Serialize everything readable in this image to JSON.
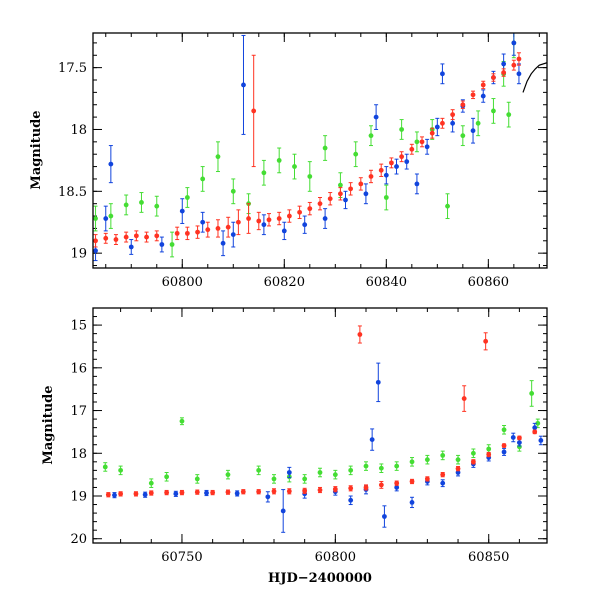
{
  "chart_data": [
    {
      "type": "scatter",
      "panel": "top",
      "title": "",
      "xlabel": "",
      "ylabel": "Magnitude",
      "xlim": [
        60782.5,
        60871.5
      ],
      "ylim": [
        19.12,
        17.22
      ],
      "y_inverted": true,
      "grid": false,
      "x_major_ticks": [
        60800,
        60820,
        60840,
        60860
      ],
      "x_tick_labels": [
        "60800",
        "60820",
        "60840",
        "60860"
      ],
      "x_minor_step": 5,
      "y_major_ticks": [
        17.5,
        18,
        18.5,
        19
      ],
      "y_tick_labels": [
        "17.5",
        "18",
        "18.5",
        "19"
      ],
      "y_minor_step": 0.1,
      "series": [
        {
          "color": "#ff3322",
          "points": [
            [
              60783,
              18.9,
              0.05
            ],
            [
              60785,
              18.88,
              0.04
            ],
            [
              60787,
              18.89,
              0.04
            ],
            [
              60789,
              18.87,
              0.04
            ],
            [
              60791,
              18.86,
              0.04
            ],
            [
              60793,
              18.87,
              0.04
            ],
            [
              60795,
              18.86,
              0.04
            ],
            [
              60799,
              18.84,
              0.05
            ],
            [
              60801,
              18.84,
              0.05
            ],
            [
              60803,
              18.83,
              0.05
            ],
            [
              60805,
              18.81,
              0.06
            ],
            [
              60807,
              18.8,
              0.07
            ],
            [
              60809,
              18.79,
              0.08
            ],
            [
              60811,
              18.75,
              0.1
            ],
            [
              60813,
              18.72,
              0.12
            ],
            [
              60814,
              17.85,
              0.45
            ],
            [
              60815,
              18.74,
              0.07
            ],
            [
              60817,
              18.73,
              0.05
            ],
            [
              60819,
              18.72,
              0.05
            ],
            [
              60821,
              18.7,
              0.05
            ],
            [
              60823,
              18.67,
              0.05
            ],
            [
              60825,
              18.64,
              0.05
            ],
            [
              60827,
              18.6,
              0.05
            ],
            [
              60829,
              18.56,
              0.05
            ],
            [
              60831,
              18.52,
              0.05
            ],
            [
              60833,
              18.48,
              0.05
            ],
            [
              60835,
              18.44,
              0.05
            ],
            [
              60837,
              18.38,
              0.05
            ],
            [
              60839,
              18.33,
              0.05
            ],
            [
              60841,
              18.27,
              0.04
            ],
            [
              60843,
              18.22,
              0.04
            ],
            [
              60845,
              18.16,
              0.04
            ],
            [
              60847,
              18.1,
              0.04
            ],
            [
              60849,
              18.03,
              0.04
            ],
            [
              60851,
              17.95,
              0.04
            ],
            [
              60853,
              17.88,
              0.04
            ],
            [
              60855,
              17.8,
              0.03
            ],
            [
              60857,
              17.72,
              0.03
            ],
            [
              60859,
              17.64,
              0.03
            ],
            [
              60861,
              17.58,
              0.03
            ],
            [
              60863,
              17.54,
              0.03
            ],
            [
              60865,
              17.48,
              0.04
            ],
            [
              60866,
              17.43,
              0.05
            ]
          ]
        },
        {
          "color": "#1144dd",
          "points": [
            [
              60783,
              18.98,
              0.08
            ],
            [
              60785,
              18.72,
              0.1
            ],
            [
              60786,
              18.28,
              0.15
            ],
            [
              60790,
              18.95,
              0.06
            ],
            [
              60796,
              18.93,
              0.06
            ],
            [
              60800,
              18.66,
              0.1
            ],
            [
              60804,
              18.75,
              0.08
            ],
            [
              60808,
              18.92,
              0.1
            ],
            [
              60810,
              18.85,
              0.1
            ],
            [
              60812,
              17.64,
              0.4
            ],
            [
              60816,
              18.77,
              0.08
            ],
            [
              60820,
              18.82,
              0.07
            ],
            [
              60824,
              18.77,
              0.07
            ],
            [
              60828,
              18.72,
              0.08
            ],
            [
              60832,
              18.57,
              0.07
            ],
            [
              60836,
              18.52,
              0.08
            ],
            [
              60838,
              17.9,
              0.1
            ],
            [
              60840,
              18.37,
              0.07
            ],
            [
              60842,
              18.3,
              0.06
            ],
            [
              60844,
              18.26,
              0.06
            ],
            [
              60846,
              18.44,
              0.08
            ],
            [
              60848,
              18.14,
              0.06
            ],
            [
              60850,
              17.98,
              0.07
            ],
            [
              60851,
              17.55,
              0.08
            ],
            [
              60853,
              17.95,
              0.07
            ],
            [
              60855,
              17.81,
              0.05
            ],
            [
              60857,
              18.01,
              0.1
            ],
            [
              60859,
              17.73,
              0.05
            ],
            [
              60861,
              17.58,
              0.05
            ],
            [
              60863,
              17.47,
              0.08
            ],
            [
              60865,
              17.3,
              0.1
            ],
            [
              60866,
              17.55,
              0.08
            ]
          ]
        },
        {
          "color": "#44dd33",
          "points": [
            [
              60783,
              18.72,
              0.1
            ],
            [
              60786,
              18.7,
              0.1
            ],
            [
              60789,
              18.61,
              0.08
            ],
            [
              60792,
              18.59,
              0.08
            ],
            [
              60795,
              18.62,
              0.08
            ],
            [
              60798,
              18.93,
              0.1
            ],
            [
              60801,
              18.55,
              0.08
            ],
            [
              60804,
              18.4,
              0.1
            ],
            [
              60807,
              18.22,
              0.12
            ],
            [
              60810,
              18.5,
              0.1
            ],
            [
              60813,
              18.6,
              0.08
            ],
            [
              60816,
              18.35,
              0.1
            ],
            [
              60819,
              18.25,
              0.1
            ],
            [
              60822,
              18.3,
              0.1
            ],
            [
              60825,
              18.38,
              0.12
            ],
            [
              60828,
              18.15,
              0.1
            ],
            [
              60831,
              18.45,
              0.1
            ],
            [
              60834,
              18.2,
              0.1
            ],
            [
              60837,
              18.05,
              0.08
            ],
            [
              60840,
              18.55,
              0.1
            ],
            [
              60843,
              18.0,
              0.08
            ],
            [
              60846,
              18.1,
              0.08
            ],
            [
              60849,
              18.0,
              0.08
            ],
            [
              60852,
              18.62,
              0.1
            ],
            [
              60855,
              18.05,
              0.08
            ],
            [
              60858,
              17.95,
              0.1
            ],
            [
              60861,
              17.85,
              0.1
            ],
            [
              60863,
              17.55,
              0.1
            ],
            [
              60864,
              17.88,
              0.1
            ],
            [
              60865,
              17.3,
              0.12
            ]
          ]
        }
      ],
      "model_curve": [
        [
          60866.8,
          17.7
        ],
        [
          60867.6,
          17.61
        ],
        [
          60868.4,
          17.55
        ],
        [
          60869.2,
          17.51
        ],
        [
          60870.0,
          17.48
        ],
        [
          60871.5,
          17.46
        ]
      ]
    },
    {
      "type": "scatter",
      "panel": "bottom",
      "title": "",
      "xlabel": "HJD−2400000",
      "ylabel": "Magnitude",
      "xlim": [
        60721,
        60869
      ],
      "ylim": [
        20.1,
        14.6
      ],
      "y_inverted": true,
      "grid": false,
      "x_major_ticks": [
        60750,
        60800,
        60850
      ],
      "x_tick_labels": [
        "60750",
        "60800",
        "60850"
      ],
      "x_minor_step": 10,
      "y_major_ticks": [
        15,
        16,
        17,
        18,
        19,
        20
      ],
      "y_tick_labels": [
        "15",
        "16",
        "17",
        "18",
        "19",
        "20"
      ],
      "y_minor_step": 0.2,
      "series": [
        {
          "color": "#ff3322",
          "points": [
            [
              60726,
              18.97,
              0.05
            ],
            [
              60730,
              18.95,
              0.05
            ],
            [
              60735,
              18.95,
              0.05
            ],
            [
              60740,
              18.93,
              0.05
            ],
            [
              60745,
              18.92,
              0.05
            ],
            [
              60750,
              18.92,
              0.05
            ],
            [
              60755,
              18.91,
              0.05
            ],
            [
              60760,
              18.92,
              0.05
            ],
            [
              60765,
              18.91,
              0.05
            ],
            [
              60770,
              18.9,
              0.05
            ],
            [
              60775,
              18.9,
              0.05
            ],
            [
              60780,
              18.89,
              0.06
            ],
            [
              60785,
              18.89,
              0.06
            ],
            [
              60790,
              18.88,
              0.06
            ],
            [
              60795,
              18.86,
              0.06
            ],
            [
              60800,
              18.84,
              0.06
            ],
            [
              60805,
              18.82,
              0.06
            ],
            [
              60808,
              15.22,
              0.2
            ],
            [
              60810,
              18.8,
              0.06
            ],
            [
              60815,
              18.74,
              0.08
            ],
            [
              60820,
              18.7,
              0.05
            ],
            [
              60825,
              18.66,
              0.05
            ],
            [
              60830,
              18.6,
              0.05
            ],
            [
              60835,
              18.5,
              0.05
            ],
            [
              60840,
              18.36,
              0.05
            ],
            [
              60842,
              16.72,
              0.3
            ],
            [
              60845,
              18.2,
              0.05
            ],
            [
              60849,
              15.38,
              0.2
            ],
            [
              60850,
              18.03,
              0.05
            ],
            [
              60855,
              17.82,
              0.04
            ],
            [
              60860,
              17.64,
              0.04
            ],
            [
              60865,
              17.5,
              0.04
            ]
          ]
        },
        {
          "color": "#1144dd",
          "points": [
            [
              60728,
              18.98,
              0.06
            ],
            [
              60738,
              18.97,
              0.06
            ],
            [
              60748,
              18.95,
              0.06
            ],
            [
              60758,
              18.93,
              0.06
            ],
            [
              60768,
              18.94,
              0.06
            ],
            [
              60778,
              19.02,
              0.12
            ],
            [
              60783,
              19.35,
              0.5
            ],
            [
              60785,
              18.45,
              0.12
            ],
            [
              60790,
              18.95,
              0.1
            ],
            [
              60800,
              18.9,
              0.08
            ],
            [
              60805,
              19.1,
              0.1
            ],
            [
              60810,
              18.85,
              0.1
            ],
            [
              60812,
              17.68,
              0.25
            ],
            [
              60814,
              16.34,
              0.45
            ],
            [
              60816,
              19.48,
              0.25
            ],
            [
              60820,
              18.8,
              0.08
            ],
            [
              60825,
              19.15,
              0.12
            ],
            [
              60830,
              18.66,
              0.08
            ],
            [
              60835,
              18.7,
              0.08
            ],
            [
              60840,
              18.45,
              0.08
            ],
            [
              60845,
              18.25,
              0.08
            ],
            [
              60850,
              18.1,
              0.08
            ],
            [
              60855,
              17.97,
              0.08
            ],
            [
              60858,
              17.63,
              0.1
            ],
            [
              60860,
              17.75,
              0.08
            ],
            [
              60865,
              17.4,
              0.1
            ],
            [
              60867,
              17.7,
              0.1
            ]
          ]
        },
        {
          "color": "#44dd33",
          "points": [
            [
              60725,
              18.32,
              0.1
            ],
            [
              60730,
              18.4,
              0.1
            ],
            [
              60740,
              18.7,
              0.1
            ],
            [
              60745,
              18.55,
              0.1
            ],
            [
              60750,
              17.25,
              0.08
            ],
            [
              60755,
              18.6,
              0.1
            ],
            [
              60765,
              18.5,
              0.1
            ],
            [
              60775,
              18.4,
              0.1
            ],
            [
              60780,
              18.6,
              0.1
            ],
            [
              60785,
              18.55,
              0.12
            ],
            [
              60790,
              18.6,
              0.1
            ],
            [
              60795,
              18.45,
              0.1
            ],
            [
              60800,
              18.5,
              0.1
            ],
            [
              60805,
              18.4,
              0.1
            ],
            [
              60810,
              18.3,
              0.1
            ],
            [
              60815,
              18.35,
              0.1
            ],
            [
              60820,
              18.3,
              0.1
            ],
            [
              60825,
              18.2,
              0.1
            ],
            [
              60830,
              18.15,
              0.1
            ],
            [
              60835,
              18.05,
              0.1
            ],
            [
              60840,
              18.15,
              0.1
            ],
            [
              60845,
              18.0,
              0.1
            ],
            [
              60850,
              17.9,
              0.1
            ],
            [
              60855,
              17.45,
              0.1
            ],
            [
              60860,
              17.85,
              0.1
            ],
            [
              60864,
              16.6,
              0.3
            ],
            [
              60866,
              17.3,
              0.1
            ]
          ]
        }
      ],
      "model_curve": []
    }
  ]
}
